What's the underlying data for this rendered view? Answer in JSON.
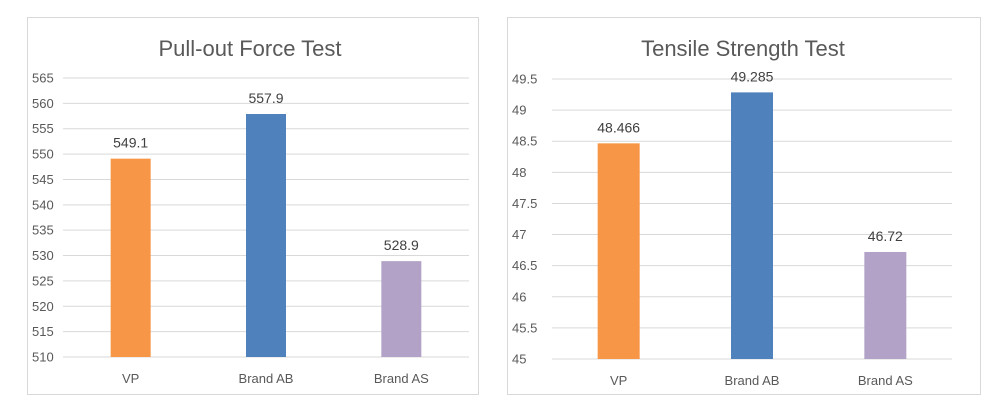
{
  "chart_data": [
    {
      "type": "bar",
      "title": "Pull-out Force Test",
      "categories": [
        "VP",
        "Brand AB",
        "Brand AS"
      ],
      "values": [
        549.1,
        557.9,
        528.9
      ],
      "value_labels": [
        "549.1",
        "557.9",
        "528.9"
      ],
      "colors": [
        "#f79646",
        "#4f81bd",
        "#b3a2c7"
      ],
      "ylim": [
        510,
        565
      ],
      "yticks": [
        510,
        515,
        520,
        525,
        530,
        535,
        540,
        545,
        550,
        555,
        560,
        565
      ],
      "ytick_labels": [
        "510",
        "515",
        "520",
        "525",
        "530",
        "535",
        "540",
        "545",
        "550",
        "555",
        "560",
        "565"
      ],
      "xlabel": "",
      "ylabel": "",
      "grid": true
    },
    {
      "type": "bar",
      "title": "Tensile Strength Test",
      "categories": [
        "VP",
        "Brand AB",
        "Brand AS"
      ],
      "values": [
        48.466,
        49.285,
        46.72
      ],
      "value_labels": [
        "48.466",
        "49.285",
        "46.72"
      ],
      "colors": [
        "#f79646",
        "#4f81bd",
        "#b3a2c7"
      ],
      "ylim": [
        45,
        49.5
      ],
      "yticks": [
        45,
        45.5,
        46,
        46.5,
        47,
        47.5,
        48,
        48.5,
        49,
        49.5
      ],
      "ytick_labels": [
        "45",
        "45.5",
        "46",
        "46.5",
        "47",
        "47.5",
        "48",
        "48.5",
        "49",
        "49.5"
      ],
      "xlabel": "",
      "ylabel": "",
      "grid": true
    }
  ]
}
